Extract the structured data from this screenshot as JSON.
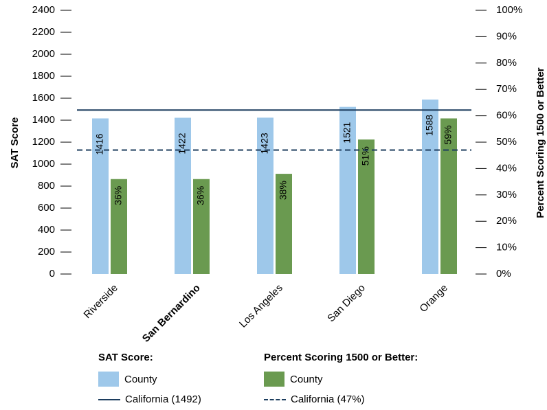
{
  "chart_data": {
    "type": "bar",
    "categories": [
      "Riverside",
      "San Bernardino",
      "Los Angeles",
      "San Diego",
      "Orange"
    ],
    "highlight_category": "San Bernardino",
    "series": [
      {
        "name": "County",
        "group": "SAT Score",
        "axis": "left",
        "color": "#9ec8ea",
        "values": [
          1416,
          1422,
          1423,
          1521,
          1588
        ],
        "labels": [
          "1416",
          "1422",
          "1423",
          "1521",
          "1588"
        ]
      },
      {
        "name": "County",
        "group": "Percent Scoring 1500 or Better",
        "axis": "right",
        "color": "#6a9a50",
        "values": [
          36,
          36,
          38,
          51,
          59
        ],
        "labels": [
          "36%",
          "36%",
          "38%",
          "51%",
          "59%"
        ]
      }
    ],
    "reference_lines": [
      {
        "name": "California (1492)",
        "axis": "left",
        "value": 1492,
        "style": "solid",
        "color": "#1c3d5e"
      },
      {
        "name": "California (47%)",
        "axis": "right",
        "value": 47,
        "style": "dashed",
        "color": "#1c3d5e"
      }
    ],
    "ylabel": "SAT Score",
    "ylabel_right": "Percent Scoring 1500 or Better",
    "ylim": [
      0,
      2400
    ],
    "ylim_right": [
      0,
      100
    ],
    "yticks": [
      "0",
      "200",
      "400",
      "600",
      "800",
      "1000",
      "1200",
      "1400",
      "1600",
      "1800",
      "2000",
      "2200",
      "2400"
    ],
    "yticks_right": [
      "0%",
      "10%",
      "20%",
      "30%",
      "40%",
      "50%",
      "60%",
      "70%",
      "80%",
      "90%",
      "100%"
    ],
    "grid": false,
    "legend_position": "bottom"
  },
  "legend": {
    "sat_title": "SAT Score:",
    "sat_county": "County",
    "sat_california": "California (1492)",
    "pct_title": "Percent Scoring 1500 or Better:",
    "pct_county": "County",
    "pct_california": "California (47%)"
  }
}
